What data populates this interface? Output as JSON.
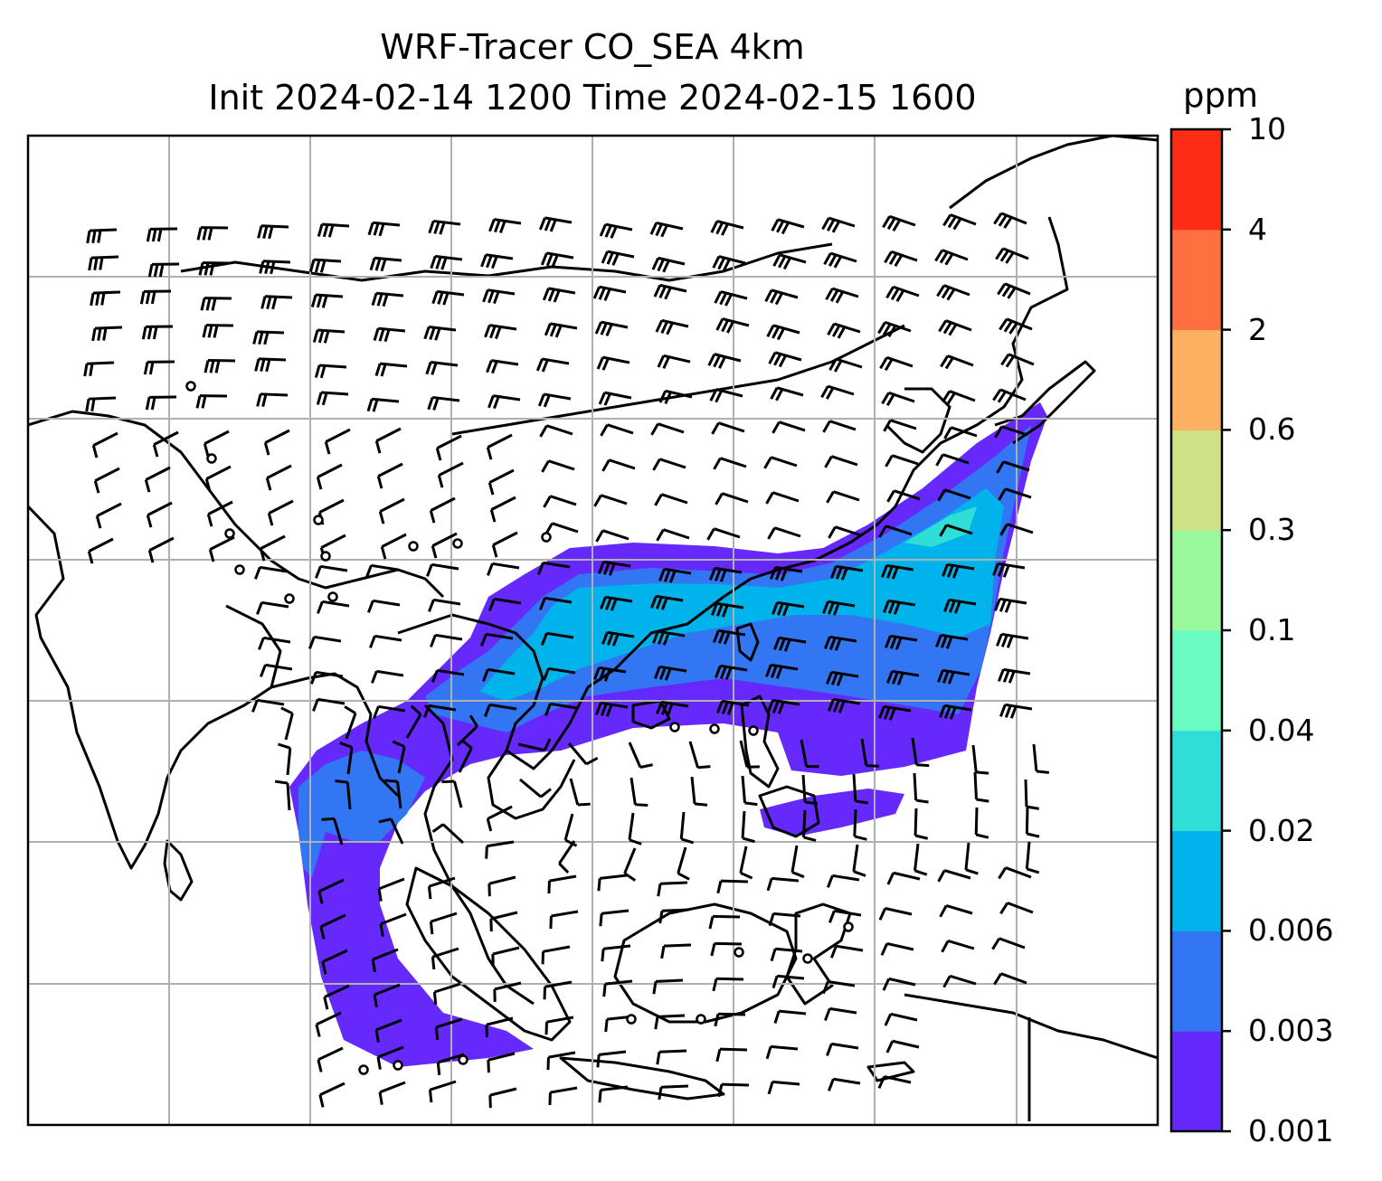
{
  "title_line1": "WRF-Tracer CO_SEA 4km",
  "title_line2": "Init 2024-02-14 1200 Time 2024-02-15 1600",
  "colorbar": {
    "unit": "ppm",
    "levels": [
      "0.001",
      "0.003",
      "0.006",
      "0.02",
      "0.04",
      "0.1",
      "0.3",
      "0.6",
      "2",
      "4",
      "10"
    ],
    "colors": [
      "#6629fc",
      "#3276f4",
      "#00b3ea",
      "#2fded6",
      "#6afbc0",
      "#9af99c",
      "#cde287",
      "#fcb062",
      "#fe703f",
      "#ff2c16"
    ]
  },
  "map": {
    "gridlines": true,
    "coastline_color": "#000000",
    "gridline_color": "#b0b0b0",
    "wind_barb_color": "#000000"
  }
}
